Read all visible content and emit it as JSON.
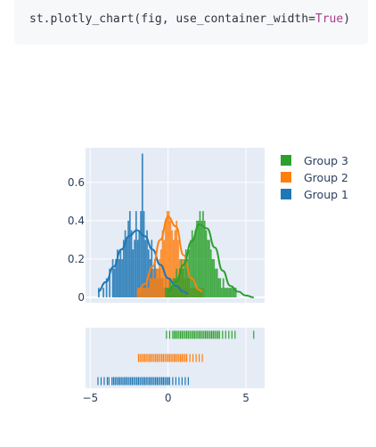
{
  "code": {
    "prefix": "st.plotly_chart(fig, use_container_width=",
    "keyword": "True",
    "suffix": ")"
  },
  "colors": {
    "group1": "#1f77b4",
    "group2": "#ff7f0e",
    "group3": "#2ca02c",
    "plot_bg": "#e5ecf6",
    "grid": "#ffffff"
  },
  "chart_data": {
    "type": "histogram+kde+rug (distplot)",
    "legend": [
      "Group 3",
      "Group 2",
      "Group 1"
    ],
    "legend_position": "right",
    "y_ticks": [
      "0",
      "0.2",
      "0.4",
      "0.6"
    ],
    "ylim": [
      0,
      0.78
    ],
    "x_ticks": [
      "−5",
      "0",
      "5"
    ],
    "xlim": [
      -5.3,
      6.2
    ],
    "bin_width": 0.1,
    "series": [
      {
        "name": "Group 1",
        "color": "#1f77b4",
        "hist_x": [
          -4.5,
          -4.4,
          -4.3,
          -4.2,
          -4.1,
          -4.0,
          -3.9,
          -3.8,
          -3.7,
          -3.6,
          -3.5,
          -3.4,
          -3.3,
          -3.2,
          -3.1,
          -3.0,
          -2.9,
          -2.8,
          -2.7,
          -2.6,
          -2.5,
          -2.4,
          -2.3,
          -2.2,
          -2.1,
          -2.0,
          -1.9,
          -1.8,
          -1.7,
          -1.6,
          -1.5,
          -1.4,
          -1.3,
          -1.2,
          -1.1,
          -1.0,
          -0.9,
          -0.8,
          -0.7,
          -0.6,
          -0.5,
          -0.4,
          -0.3,
          -0.2,
          -0.1,
          0.0,
          0.1,
          0.2,
          0.3,
          0.4,
          0.5,
          0.6,
          0.7,
          0.8,
          0.9,
          1.0,
          1.1
        ],
        "hist_y": [
          0.05,
          0,
          0,
          0.05,
          0,
          0.1,
          0,
          0.15,
          0,
          0.2,
          0.15,
          0.2,
          0.25,
          0.2,
          0.25,
          0.2,
          0.3,
          0.35,
          0.3,
          0.4,
          0.45,
          0.35,
          0.25,
          0.3,
          0.45,
          0.3,
          0.35,
          0.45,
          0.75,
          0.45,
          0.3,
          0.35,
          0.25,
          0.2,
          0.3,
          0.15,
          0.2,
          0.15,
          0.1,
          0.15,
          0.1,
          0.1,
          0.05,
          0.1,
          0.05,
          0.1,
          0.05,
          0.05,
          0.05,
          0.05,
          0,
          0.05,
          0,
          0.05,
          0,
          0.05,
          0.05
        ],
        "kde_x": [
          -4.5,
          -4.0,
          -3.5,
          -3.0,
          -2.5,
          -2.0,
          -1.5,
          -1.0,
          -0.5,
          0.0,
          0.5,
          1.0,
          1.3
        ],
        "kde_y": [
          0.03,
          0.08,
          0.16,
          0.25,
          0.32,
          0.35,
          0.32,
          0.25,
          0.17,
          0.1,
          0.06,
          0.03,
          0.02
        ],
        "rug_x": [
          -4.5,
          -4.3,
          -4.1,
          -3.9,
          -3.8,
          -3.6,
          -3.5,
          -3.4,
          -3.3,
          -3.2,
          -3.1,
          -3.0,
          -2.9,
          -2.8,
          -2.7,
          -2.6,
          -2.5,
          -2.4,
          -2.3,
          -2.2,
          -2.1,
          -2.0,
          -1.9,
          -1.8,
          -1.7,
          -1.6,
          -1.5,
          -1.4,
          -1.3,
          -1.2,
          -1.1,
          -1.0,
          -0.9,
          -0.8,
          -0.7,
          -0.6,
          -0.5,
          -0.4,
          -0.3,
          -0.2,
          -0.1,
          0.0,
          0.1,
          0.3,
          0.5,
          0.7,
          0.9,
          1.1,
          1.3
        ]
      },
      {
        "name": "Group 2",
        "color": "#ff7f0e",
        "hist_x": [
          -2.0,
          -1.9,
          -1.8,
          -1.7,
          -1.6,
          -1.5,
          -1.4,
          -1.3,
          -1.2,
          -1.1,
          -1.0,
          -0.9,
          -0.8,
          -0.7,
          -0.6,
          -0.5,
          -0.4,
          -0.3,
          -0.2,
          -0.1,
          0.0,
          0.1,
          0.2,
          0.3,
          0.4,
          0.5,
          0.6,
          0.7,
          0.8,
          0.9,
          1.0,
          1.1,
          1.2,
          1.3,
          1.4,
          1.5,
          1.6,
          1.7,
          1.8,
          1.9,
          2.0,
          2.1,
          2.2
        ],
        "hist_y": [
          0.05,
          0.05,
          0.05,
          0.05,
          0.05,
          0.05,
          0.1,
          0.05,
          0.1,
          0.1,
          0.15,
          0.1,
          0.15,
          0.15,
          0.2,
          0.25,
          0.35,
          0.3,
          0.4,
          0.45,
          0.45,
          0.4,
          0.35,
          0.3,
          0.35,
          0.4,
          0.3,
          0.2,
          0.15,
          0.2,
          0.1,
          0.15,
          0.1,
          0.1,
          0.05,
          0.05,
          0.05,
          0.05,
          0.05,
          0.05,
          0.05,
          0.05,
          0.05
        ],
        "kde_x": [
          -2.0,
          -1.5,
          -1.0,
          -0.5,
          0.0,
          0.5,
          1.0,
          1.5,
          2.0,
          2.2
        ],
        "kde_y": [
          0.02,
          0.07,
          0.16,
          0.3,
          0.42,
          0.37,
          0.22,
          0.1,
          0.04,
          0.03
        ],
        "rug_x": [
          -1.9,
          -1.8,
          -1.7,
          -1.6,
          -1.5,
          -1.4,
          -1.3,
          -1.2,
          -1.1,
          -1.0,
          -0.9,
          -0.8,
          -0.7,
          -0.6,
          -0.5,
          -0.4,
          -0.3,
          -0.2,
          -0.1,
          0.0,
          0.1,
          0.2,
          0.3,
          0.4,
          0.5,
          0.6,
          0.7,
          0.8,
          0.9,
          1.0,
          1.1,
          1.2,
          1.4,
          1.6,
          1.8,
          2.0,
          2.2
        ]
      },
      {
        "name": "Group 3",
        "color": "#2ca02c",
        "hist_x": [
          -0.2,
          -0.1,
          0.0,
          0.1,
          0.2,
          0.3,
          0.4,
          0.5,
          0.6,
          0.7,
          0.8,
          0.9,
          1.0,
          1.1,
          1.2,
          1.3,
          1.4,
          1.5,
          1.6,
          1.7,
          1.8,
          1.9,
          2.0,
          2.1,
          2.2,
          2.3,
          2.4,
          2.5,
          2.6,
          2.7,
          2.8,
          2.9,
          3.0,
          3.1,
          3.2,
          3.3,
          3.4,
          3.5,
          3.6,
          3.7,
          3.8,
          3.9,
          4.0,
          4.1,
          4.2,
          4.3
        ],
        "hist_y": [
          0.05,
          0.05,
          0.05,
          0.1,
          0.05,
          0.1,
          0.1,
          0.15,
          0.1,
          0.15,
          0.2,
          0.15,
          0.2,
          0.25,
          0.2,
          0.25,
          0.3,
          0.35,
          0.3,
          0.35,
          0.4,
          0.4,
          0.45,
          0.4,
          0.45,
          0.4,
          0.35,
          0.3,
          0.3,
          0.25,
          0.2,
          0.2,
          0.15,
          0.15,
          0.1,
          0.1,
          0.05,
          0.1,
          0.05,
          0.05,
          0.05,
          0.05,
          0.05,
          0.05,
          0.05,
          0.05
        ],
        "kde_x": [
          0.0,
          0.5,
          1.0,
          1.5,
          2.0,
          2.5,
          3.0,
          3.5,
          4.0,
          4.5,
          5.0,
          5.5
        ],
        "kde_y": [
          0.03,
          0.08,
          0.17,
          0.29,
          0.38,
          0.36,
          0.26,
          0.14,
          0.06,
          0.03,
          0.01,
          0.0
        ],
        "rug_x": [
          -0.1,
          0.1,
          0.3,
          0.4,
          0.5,
          0.6,
          0.7,
          0.8,
          0.9,
          1.0,
          1.1,
          1.2,
          1.3,
          1.4,
          1.5,
          1.6,
          1.7,
          1.8,
          1.9,
          2.0,
          2.1,
          2.2,
          2.3,
          2.4,
          2.5,
          2.6,
          2.7,
          2.8,
          2.9,
          3.0,
          3.1,
          3.2,
          3.3,
          3.5,
          3.7,
          3.9,
          4.1,
          4.3,
          5.5
        ]
      }
    ]
  }
}
